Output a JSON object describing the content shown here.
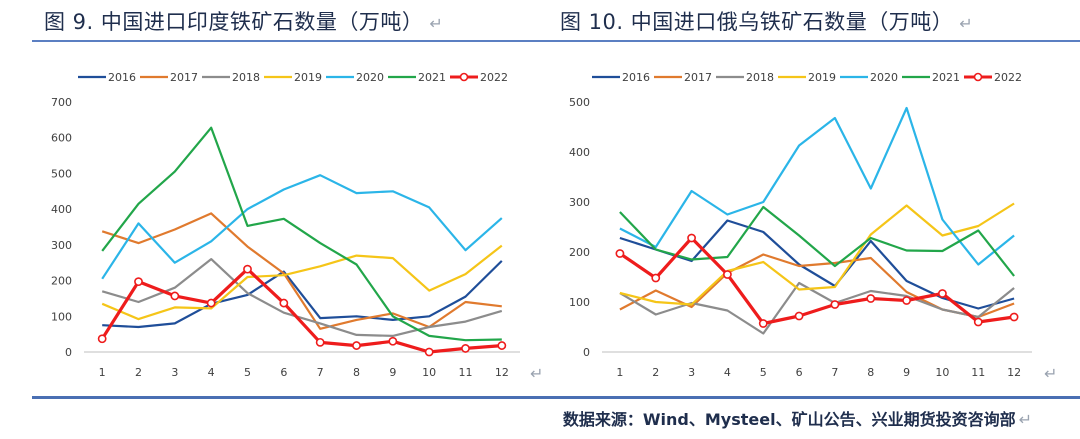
{
  "titles": {
    "left": "图 9. 中国进口印度铁矿石数量（万吨）",
    "right": "图 10. 中国进口俄乌铁矿石数量（万吨）",
    "return_mark": "↵"
  },
  "source": "数据来源：Wind、Mysteel、矿山公告、兴业期货投资咨询部",
  "colors": {
    "2016": "#1f4e99",
    "2017": "#e07a2e",
    "2018": "#8c8c8c",
    "2019": "#f5c518",
    "2020": "#2bb5e8",
    "2021": "#22a64a",
    "2022": "#ee1c1c"
  },
  "chart_data": [
    {
      "type": "line",
      "title": "中国进口印度铁矿石数量（万吨）",
      "x": [
        "1",
        "2",
        "3",
        "4",
        "5",
        "6",
        "7",
        "8",
        "9",
        "10",
        "11",
        "12"
      ],
      "ylim": [
        0,
        700
      ],
      "yticks": [
        "0",
        "100",
        "200",
        "300",
        "400",
        "500",
        "600",
        "700"
      ],
      "legend_position": "top",
      "series": [
        {
          "name": "2016",
          "values": [
            75,
            70,
            80,
            135,
            160,
            225,
            95,
            100,
            90,
            100,
            155,
            255
          ]
        },
        {
          "name": "2017",
          "values": [
            338,
            305,
            343,
            388,
            295,
            220,
            65,
            90,
            108,
            70,
            140,
            128
          ]
        },
        {
          "name": "2018",
          "values": [
            170,
            140,
            180,
            260,
            165,
            110,
            80,
            48,
            45,
            70,
            85,
            115
          ]
        },
        {
          "name": "2019",
          "values": [
            135,
            92,
            125,
            122,
            210,
            215,
            240,
            270,
            263,
            172,
            218,
            298
          ]
        },
        {
          "name": "2020",
          "values": [
            205,
            360,
            250,
            310,
            400,
            455,
            495,
            445,
            450,
            405,
            285,
            375
          ]
        },
        {
          "name": "2021",
          "values": [
            283,
            415,
            505,
            628,
            353,
            373,
            305,
            245,
            100,
            45,
            33,
            35
          ]
        },
        {
          "name": "2022",
          "values": [
            37,
            197,
            157,
            137,
            232,
            137,
            27,
            18,
            30,
            0,
            10,
            18
          ]
        }
      ]
    },
    {
      "type": "line",
      "title": "中国进口俄乌铁矿石数量（万吨）",
      "x": [
        "1",
        "2",
        "3",
        "4",
        "5",
        "6",
        "7",
        "8",
        "9",
        "10",
        "11",
        "12"
      ],
      "ylim": [
        0,
        500
      ],
      "yticks": [
        "0",
        "100",
        "200",
        "300",
        "400",
        "500"
      ],
      "legend_position": "top",
      "series": [
        {
          "name": "2016",
          "values": [
            228,
            205,
            182,
            263,
            240,
            175,
            132,
            222,
            142,
            108,
            87,
            107
          ]
        },
        {
          "name": "2017",
          "values": [
            85,
            123,
            90,
            158,
            195,
            172,
            178,
            188,
            120,
            85,
            70,
            97
          ]
        },
        {
          "name": "2018",
          "values": [
            118,
            75,
            98,
            83,
            37,
            138,
            98,
            122,
            112,
            85,
            70,
            128
          ]
        },
        {
          "name": "2019",
          "values": [
            118,
            100,
            95,
            162,
            180,
            125,
            130,
            235,
            293,
            233,
            252,
            297
          ]
        },
        {
          "name": "2020",
          "values": [
            247,
            210,
            322,
            275,
            300,
            413,
            468,
            327,
            488,
            265,
            175,
            233
          ]
        },
        {
          "name": "2021",
          "values": [
            280,
            205,
            185,
            190,
            290,
            233,
            172,
            228,
            203,
            202,
            243,
            152
          ]
        },
        {
          "name": "2022",
          "values": [
            197,
            148,
            228,
            155,
            57,
            72,
            95,
            107,
            103,
            117,
            60,
            70
          ]
        }
      ]
    }
  ]
}
